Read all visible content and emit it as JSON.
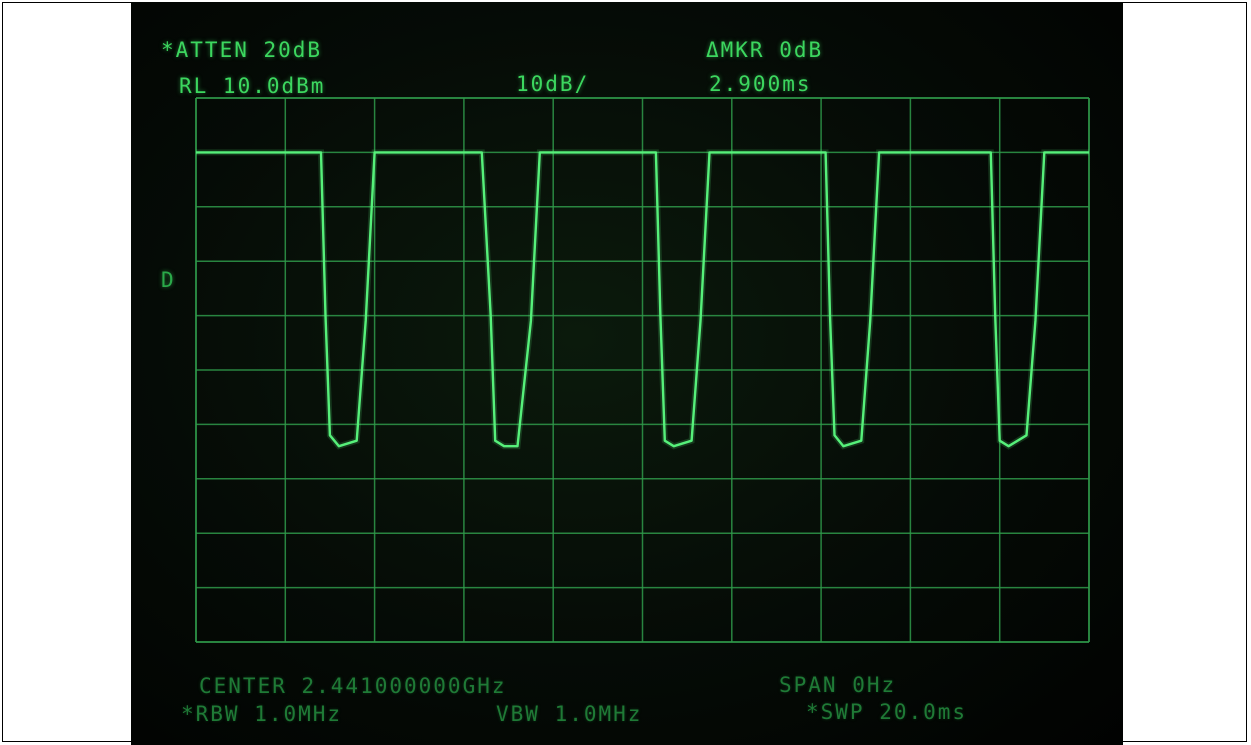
{
  "readout": {
    "atten": "*ATTEN 20dB",
    "ref_level": "RL 10.0dBm",
    "scale": "10dB/",
    "delta_marker": "ΔMKR 0dB",
    "delta_time": "2.900ms",
    "detector_flag": "D",
    "center": "CENTER 2.441000000GHz",
    "span": "SPAN 0Hz",
    "rbw": "*RBW 1.0MHz",
    "vbw": "VBW 1.0MHz",
    "sweep": "*SWP 20.0ms"
  },
  "colors": {
    "trace": "#56f07a",
    "grid": "#2f9a4a",
    "text": "#3cd75f"
  },
  "chart_data": {
    "type": "line",
    "xlabel": "",
    "ylabel": "",
    "ylim_divisions": [
      0,
      10
    ],
    "xlim_divisions": [
      0,
      10
    ],
    "series": [
      {
        "x": [
          0,
          1.4,
          1.45,
          1.5,
          1.6,
          1.8,
          1.9,
          2.0,
          2.1,
          3.2,
          3.3,
          3.35,
          3.45,
          3.6,
          3.75,
          3.85,
          3.95,
          5.15,
          5.2,
          5.25,
          5.35,
          5.55,
          5.65,
          5.75,
          5.85,
          7.05,
          7.1,
          7.15,
          7.25,
          7.45,
          7.55,
          7.65,
          7.75,
          8.9,
          8.95,
          9.0,
          9.1,
          9.3,
          9.4,
          9.5,
          9.6,
          10.0
        ],
        "y": [
          9.0,
          9.0,
          6.0,
          3.8,
          3.6,
          3.7,
          5.9,
          9.0,
          9.0,
          9.0,
          6.0,
          3.7,
          3.6,
          3.6,
          5.9,
          9.0,
          9.0,
          9.0,
          6.0,
          3.7,
          3.6,
          3.7,
          5.9,
          9.0,
          9.0,
          9.0,
          6.0,
          3.8,
          3.6,
          3.7,
          5.9,
          9.0,
          9.0,
          9.0,
          6.0,
          3.7,
          3.6,
          3.8,
          5.9,
          9.0,
          9.0,
          9.0
        ]
      }
    ]
  }
}
